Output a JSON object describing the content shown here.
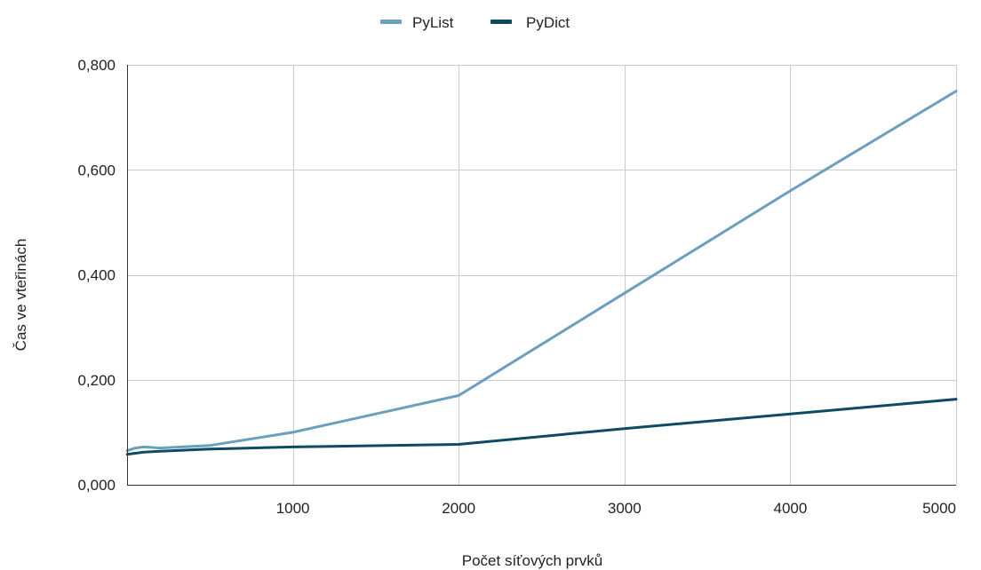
{
  "chart_data": {
    "type": "line",
    "title": "",
    "xlabel": "Počet síťových prvků",
    "ylabel": "Čas ve vteřinách",
    "xlim": [
      0,
      5000
    ],
    "ylim": [
      0,
      0.8
    ],
    "x_ticks": [
      1000,
      2000,
      3000,
      4000,
      5000
    ],
    "x_tick_labels": [
      "1000",
      "2000",
      "3000",
      "4000",
      "5000"
    ],
    "y_ticks": [
      0,
      0.2,
      0.4,
      0.6,
      0.8
    ],
    "y_tick_labels": [
      "0,000",
      "0,200",
      "0,400",
      "0,600",
      "0,800"
    ],
    "grid": true,
    "legend_position": "top",
    "series": [
      {
        "name": "PyList",
        "color": "#6a9fbe",
        "x": [
          1,
          50,
          100,
          200,
          500,
          1000,
          2000,
          3000,
          4000,
          5000
        ],
        "y": [
          0.065,
          0.07,
          0.072,
          0.07,
          0.075,
          0.1,
          0.17,
          0.365,
          0.56,
          0.75
        ]
      },
      {
        "name": "PyDict",
        "color": "#0e4a63",
        "x": [
          1,
          50,
          100,
          200,
          500,
          1000,
          2000,
          3000,
          4000,
          5000
        ],
        "y": [
          0.058,
          0.06,
          0.062,
          0.064,
          0.068,
          0.072,
          0.077,
          0.107,
          0.135,
          0.163
        ]
      }
    ]
  }
}
